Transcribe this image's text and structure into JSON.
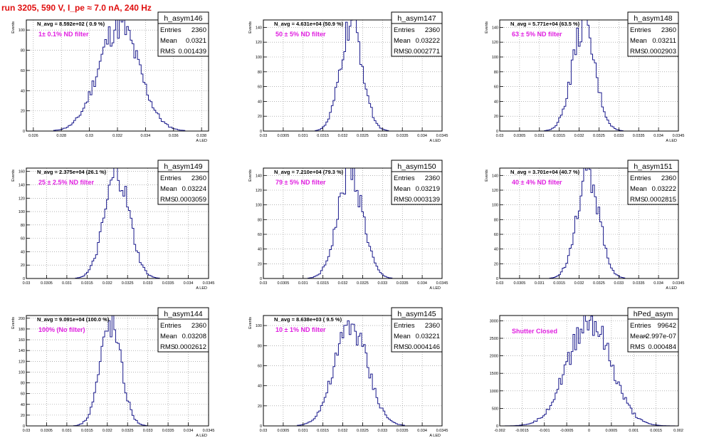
{
  "page": {
    "title": "run 3205,   590 V, I_pe ≈ 7.0 nA, 240 Hz"
  },
  "colors": {
    "hist_line": "#1a1a8c",
    "label_text": "#e020e0",
    "run_title": "#e01010",
    "frame": "#000000",
    "grid": "#888888"
  },
  "chart_data": [
    {
      "type": "histogram",
      "name": "h_asym146",
      "avg_label": "N_avg = 8.592e+02 ( 0.9 %)",
      "filter_label": "1± 0.1% ND filter",
      "stats": {
        "entries": "2360",
        "mean": "0.0321",
        "rms": "0.001439"
      },
      "xlim": [
        0.0255,
        0.0385
      ],
      "ylim": [
        0,
        110
      ],
      "xticks": [
        0.026,
        0.028,
        0.03,
        0.032,
        0.034,
        0.036,
        0.038
      ],
      "xtick_labels": [
        "0.026",
        "0.028",
        "0.03",
        "0.032",
        "0.034",
        "0.036",
        "0.038"
      ],
      "yticks": [
        0,
        20,
        40,
        60,
        80,
        100
      ],
      "ytick_labels": [
        "0",
        "20",
        "40",
        "60",
        "80",
        "100"
      ],
      "xlabel": "A_LED",
      "ylabel": "Events",
      "mean": 0.0321,
      "rms": 0.001439,
      "peak": 105,
      "grid": true
    },
    {
      "type": "histogram",
      "name": "h_asym147",
      "avg_label": "N_avg = 4.631e+04 (50.9 %)",
      "filter_label": "50 ± 5% ND filter",
      "stats": {
        "entries": "2360",
        "mean": "0.03222",
        "rms": "0.0002771"
      },
      "xlim": [
        0.03,
        0.0345
      ],
      "ylim": [
        0,
        150
      ],
      "xticks": [
        0.03,
        0.0305,
        0.031,
        0.0315,
        0.032,
        0.0325,
        0.033,
        0.0335,
        0.034,
        0.0345
      ],
      "xtick_labels": [
        "0.03",
        "0.0305",
        "0.031",
        "0.0315",
        "0.032",
        "0.0325",
        "0.033",
        "0.0335",
        "0.034",
        "0.0345"
      ],
      "yticks": [
        0,
        20,
        40,
        60,
        80,
        100,
        120,
        140
      ],
      "ytick_labels": [
        "0",
        "20",
        "40",
        "60",
        "80",
        "100",
        "120",
        "140"
      ],
      "xlabel": "A_LED",
      "ylabel": "Events",
      "mean": 0.03222,
      "rms": 0.0002771,
      "peak": 145,
      "grid": true
    },
    {
      "type": "histogram",
      "name": "h_asym148",
      "avg_label": "N_avg = 5.771e+04 (63.5 %)",
      "filter_label": "63 ± 5% ND filter",
      "stats": {
        "entries": "2360",
        "mean": "0.03211",
        "rms": "0.0002903"
      },
      "xlim": [
        0.03,
        0.0345
      ],
      "ylim": [
        0,
        150
      ],
      "xticks": [
        0.03,
        0.0305,
        0.031,
        0.0315,
        0.032,
        0.0325,
        0.033,
        0.0335,
        0.034,
        0.0345
      ],
      "xtick_labels": [
        "0.03",
        "0.0305",
        "0.031",
        "0.0315",
        "0.032",
        "0.0325",
        "0.033",
        "0.0335",
        "0.034",
        "0.0345"
      ],
      "yticks": [
        0,
        20,
        40,
        60,
        80,
        100,
        120,
        140
      ],
      "ytick_labels": [
        "0",
        "20",
        "40",
        "60",
        "80",
        "100",
        "120",
        "140"
      ],
      "xlabel": "A_LED",
      "ylabel": "Events",
      "mean": 0.03211,
      "rms": 0.0002903,
      "peak": 140,
      "grid": true
    },
    {
      "type": "histogram",
      "name": "h_asym149",
      "avg_label": "N_avg = 2.375e+04 (26.1 %)",
      "filter_label": "25 ± 2.5% ND filter",
      "stats": {
        "entries": "2360",
        "mean": "0.03224",
        "rms": "0.0003059"
      },
      "xlim": [
        0.03,
        0.0345
      ],
      "ylim": [
        0,
        165
      ],
      "xticks": [
        0.03,
        0.0305,
        0.031,
        0.0315,
        0.032,
        0.0325,
        0.033,
        0.0335,
        0.034,
        0.0345
      ],
      "xtick_labels": [
        "0.03",
        "0.0305",
        "0.031",
        "0.0315",
        "0.032",
        "0.0325",
        "0.033",
        "0.0335",
        "0.034",
        "0.0345"
      ],
      "yticks": [
        0,
        20,
        40,
        60,
        80,
        100,
        120,
        140,
        160
      ],
      "ytick_labels": [
        "0",
        "20",
        "40",
        "60",
        "80",
        "100",
        "120",
        "140",
        "160"
      ],
      "xlabel": "A_LED",
      "ylabel": "Events",
      "mean": 0.03224,
      "rms": 0.0003059,
      "peak": 155,
      "grid": true
    },
    {
      "type": "histogram",
      "name": "h_asym150",
      "avg_label": "N_avg = 7.210e+04 (79.3 %)",
      "filter_label": "79 ± 5% ND filter",
      "stats": {
        "entries": "2360",
        "mean": "0.03219",
        "rms": "0.0003139"
      },
      "xlim": [
        0.03,
        0.0345
      ],
      "ylim": [
        0,
        150
      ],
      "xticks": [
        0.03,
        0.0305,
        0.031,
        0.0315,
        0.032,
        0.0325,
        0.033,
        0.0335,
        0.034,
        0.0345
      ],
      "xtick_labels": [
        "0.03",
        "0.0305",
        "0.031",
        "0.0315",
        "0.032",
        "0.0325",
        "0.033",
        "0.0335",
        "0.034",
        "0.0345"
      ],
      "yticks": [
        0,
        20,
        40,
        60,
        80,
        100,
        120,
        140
      ],
      "ytick_labels": [
        "0",
        "20",
        "40",
        "60",
        "80",
        "100",
        "120",
        "140"
      ],
      "xlabel": "A_LED",
      "ylabel": "Events",
      "mean": 0.03219,
      "rms": 0.0003139,
      "peak": 145,
      "grid": true
    },
    {
      "type": "histogram",
      "name": "h_asym151",
      "avg_label": "N_avg = 3.701e+04 (40.7 %)",
      "filter_label": "40 ± 4% ND filter",
      "stats": {
        "entries": "2360",
        "mean": "0.03222",
        "rms": "0.0002815"
      },
      "xlim": [
        0.03,
        0.0345
      ],
      "ylim": [
        0,
        150
      ],
      "xticks": [
        0.03,
        0.0305,
        0.031,
        0.0315,
        0.032,
        0.0325,
        0.033,
        0.0335,
        0.034,
        0.0345
      ],
      "xtick_labels": [
        "0.03",
        "0.0305",
        "0.031",
        "0.0315",
        "0.032",
        "0.0325",
        "0.033",
        "0.0335",
        "0.034",
        "0.0345"
      ],
      "yticks": [
        0,
        20,
        40,
        60,
        80,
        100,
        120,
        140
      ],
      "ytick_labels": [
        "0",
        "20",
        "40",
        "60",
        "80",
        "100",
        "120",
        "140"
      ],
      "xlabel": "A_LED",
      "ylabel": "Events",
      "mean": 0.03222,
      "rms": 0.0002815,
      "peak": 145,
      "grid": true
    },
    {
      "type": "histogram",
      "name": "h_asym144",
      "avg_label": "N_avg = 9.091e+04 (100.0 %)",
      "filter_label": "100% (No filter)",
      "stats": {
        "entries": "2360",
        "mean": "0.03208",
        "rms": "0.0002612"
      },
      "xlim": [
        0.03,
        0.0345
      ],
      "ylim": [
        0,
        205
      ],
      "xticks": [
        0.03,
        0.0305,
        0.031,
        0.0315,
        0.032,
        0.0325,
        0.033,
        0.0335,
        0.034,
        0.0345
      ],
      "xtick_labels": [
        "0.03",
        "0.0305",
        "0.031",
        "0.0315",
        "0.032",
        "0.0325",
        "0.033",
        "0.0335",
        "0.034",
        "0.0345"
      ],
      "yticks": [
        0,
        20,
        40,
        60,
        80,
        100,
        120,
        140,
        160,
        180,
        200
      ],
      "ytick_labels": [
        "0",
        "20",
        "40",
        "60",
        "80",
        "100",
        "120",
        "140",
        "160",
        "180",
        "200"
      ],
      "xlabel": "A_LED",
      "ylabel": "Events",
      "mean": 0.03208,
      "rms": 0.0002612,
      "peak": 190,
      "grid": true
    },
    {
      "type": "histogram",
      "name": "h_asym145",
      "avg_label": "N_avg = 8.638e+03 ( 9.5 %)",
      "filter_label": "10 ± 1% ND filter",
      "stats": {
        "entries": "2360",
        "mean": "0.03221",
        "rms": "0.0004146"
      },
      "xlim": [
        0.03,
        0.0345
      ],
      "ylim": [
        0,
        110
      ],
      "xticks": [
        0.03,
        0.0305,
        0.031,
        0.0315,
        0.032,
        0.0325,
        0.033,
        0.0335,
        0.034,
        0.0345
      ],
      "xtick_labels": [
        "0.03",
        "0.0305",
        "0.031",
        "0.0315",
        "0.032",
        "0.0325",
        "0.033",
        "0.0335",
        "0.034",
        "0.0345"
      ],
      "yticks": [
        0,
        20,
        40,
        60,
        80,
        100
      ],
      "ytick_labels": [
        "0",
        "20",
        "40",
        "60",
        "80",
        "100"
      ],
      "xlabel": "A_LED",
      "ylabel": "Events",
      "mean": 0.03221,
      "rms": 0.0004146,
      "peak": 100,
      "grid": true
    },
    {
      "type": "histogram",
      "name": "hPed_asym",
      "avg_label": "",
      "filter_label": "Shutter Closed",
      "stats": {
        "entries": "99642",
        "mean": "-2.997e-07",
        "rms": "0.000484"
      },
      "xlim": [
        -0.002,
        0.002
      ],
      "ylim": [
        0,
        3150
      ],
      "xticks": [
        -0.002,
        -0.0015,
        -0.001,
        -0.0005,
        0,
        0.0005,
        0.001,
        0.0015,
        0.002
      ],
      "xtick_labels": [
        "-0.002",
        "-0.0015",
        "-0.001",
        "-0.0005",
        "0",
        "0.0005",
        "0.001",
        "0.0015",
        "0.002"
      ],
      "yticks": [
        0,
        500,
        1000,
        1500,
        2000,
        2500,
        3000
      ],
      "ytick_labels": [
        "0",
        "500",
        "1000",
        "1500",
        "2000",
        "2500",
        "3000"
      ],
      "xlabel": "",
      "ylabel": "",
      "mean": 0,
      "rms": 0.000484,
      "peak": 3000,
      "grid": true
    }
  ]
}
